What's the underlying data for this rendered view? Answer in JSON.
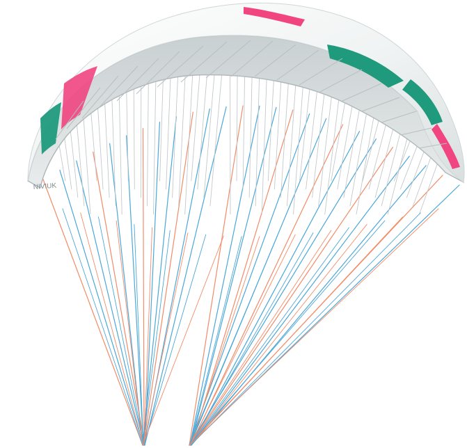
{
  "image": {
    "background_color": "#ffffff",
    "canopy": {
      "top_surface_color": "#f2f4f4",
      "underside_color": "#dfe3e4",
      "rib_color": "#b7bfc2",
      "accent_pink": "#f0457f",
      "accent_green": "#1f9a7c"
    },
    "lines": {
      "blue": "#4aa7d8",
      "orange": "#f28b67",
      "gray": "#c3c8cb"
    },
    "logo_text": "NIVIUK"
  }
}
